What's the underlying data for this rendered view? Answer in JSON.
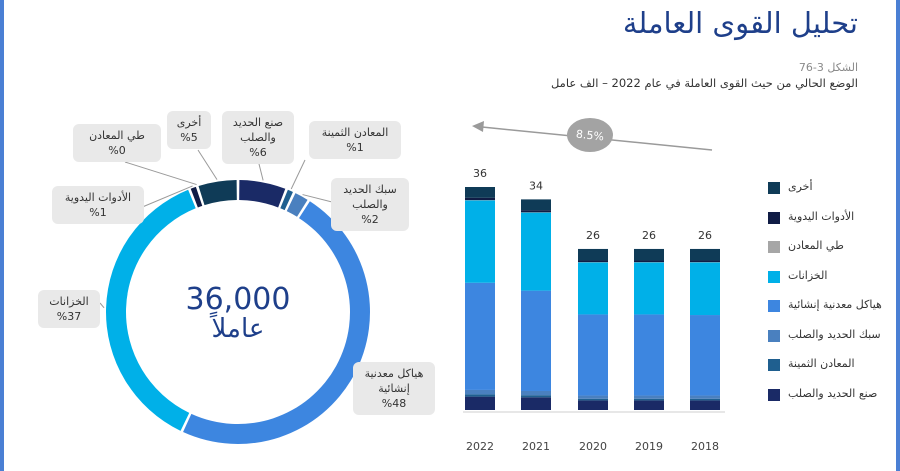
{
  "header": {
    "title": "تحليل القوى العاملة",
    "figure_number": "الشكل 3-76",
    "figure_caption": "الوضع الحالي من حيث القوى العاملة في عام 2022 – الف عامل"
  },
  "donut": {
    "center_value": "36,000",
    "center_label": "عاملاً"
  },
  "growth": {
    "label": "8.5%"
  },
  "colors": {
    "other": "#0f3b57",
    "handtools": "#101c45",
    "mining": "#a6a6a6",
    "tanks": "#00b0e8",
    "structural": "#3d86e0",
    "wires": "#4a80bf",
    "precious": "#1f5f8f",
    "steel": "#1a2a66"
  },
  "chart_data": [
    {
      "type": "bar",
      "stacked": true,
      "title": "",
      "categories": [
        "2022",
        "2021",
        "2020",
        "2019",
        "2018"
      ],
      "totals": [
        "36",
        "34",
        "26",
        "26",
        "26"
      ],
      "ylim": [
        0,
        36
      ],
      "series": [
        {
          "name": "صنع الحديد والصلب",
          "color": "#1a2a66",
          "values": [
            2.16,
            2.05,
            1.55,
            1.55,
            1.55
          ]
        },
        {
          "name": "المعادن الثمينة",
          "color": "#1f5f8f",
          "values": [
            0.36,
            0.34,
            0.26,
            0.26,
            0.26
          ]
        },
        {
          "name": "سبك الحديد والصلب",
          "color": "#4a80bf",
          "values": [
            0.72,
            0.68,
            0.52,
            0.52,
            0.52
          ]
        },
        {
          "name": "هياكل معدنية إنشائية",
          "color": "#3d86e0",
          "values": [
            17.3,
            16.2,
            13.1,
            13.1,
            13.0
          ]
        },
        {
          "name": "الخزانات",
          "color": "#00b0e8",
          "values": [
            13.3,
            12.6,
            8.4,
            8.4,
            8.5
          ]
        },
        {
          "name": "طي المعادن",
          "color": "#a6a6a6",
          "values": [
            0.05,
            0.05,
            0.05,
            0.05,
            0.05
          ]
        },
        {
          "name": "الأدوات اليدوية",
          "color": "#101c45",
          "values": [
            0.36,
            0.34,
            0.26,
            0.26,
            0.26
          ]
        },
        {
          "name": "أخرى",
          "color": "#0f3b57",
          "values": [
            1.75,
            1.74,
            1.86,
            1.86,
            1.86
          ]
        }
      ],
      "legend_position": "right"
    },
    {
      "type": "pie",
      "donut": true,
      "slices": [
        {
          "name": "صنع الحديد والصلب",
          "name_lines": [
            "صنع الحديد",
            "والصلب"
          ],
          "value": 6,
          "label": "%6",
          "color": "#1a2a66"
        },
        {
          "name": "المعادن الثمينة",
          "name_lines": [
            "المعادن الثمينة"
          ],
          "value": 1,
          "label": "%1",
          "color": "#1f5f8f"
        },
        {
          "name": "سبك الحديد والصلب",
          "name_lines": [
            "سبك الحديد",
            "والصلب"
          ],
          "value": 2,
          "label": "%2",
          "color": "#4a80bf"
        },
        {
          "name": "هياكل معدنية إنشائية",
          "name_lines": [
            "هياكل معدنية",
            "إنشائية"
          ],
          "value": 48,
          "label": "%48",
          "color": "#3d86e0"
        },
        {
          "name": "الخزانات",
          "name_lines": [
            "الخزانات"
          ],
          "value": 37,
          "label": "%37",
          "color": "#00b0e8"
        },
        {
          "name": "الأدوات اليدوية",
          "name_lines": [
            "الأدوات اليدوية"
          ],
          "value": 1,
          "label": "%1",
          "color": "#101c45"
        },
        {
          "name": "طي المعادن",
          "name_lines": [
            "طي المعادن"
          ],
          "value": 0,
          "label": "%0",
          "color": "#a6a6a6"
        },
        {
          "name": "أخرى",
          "name_lines": [
            "أخرى"
          ],
          "value": 5,
          "label": "%5",
          "color": "#0f3b57"
        }
      ]
    }
  ]
}
